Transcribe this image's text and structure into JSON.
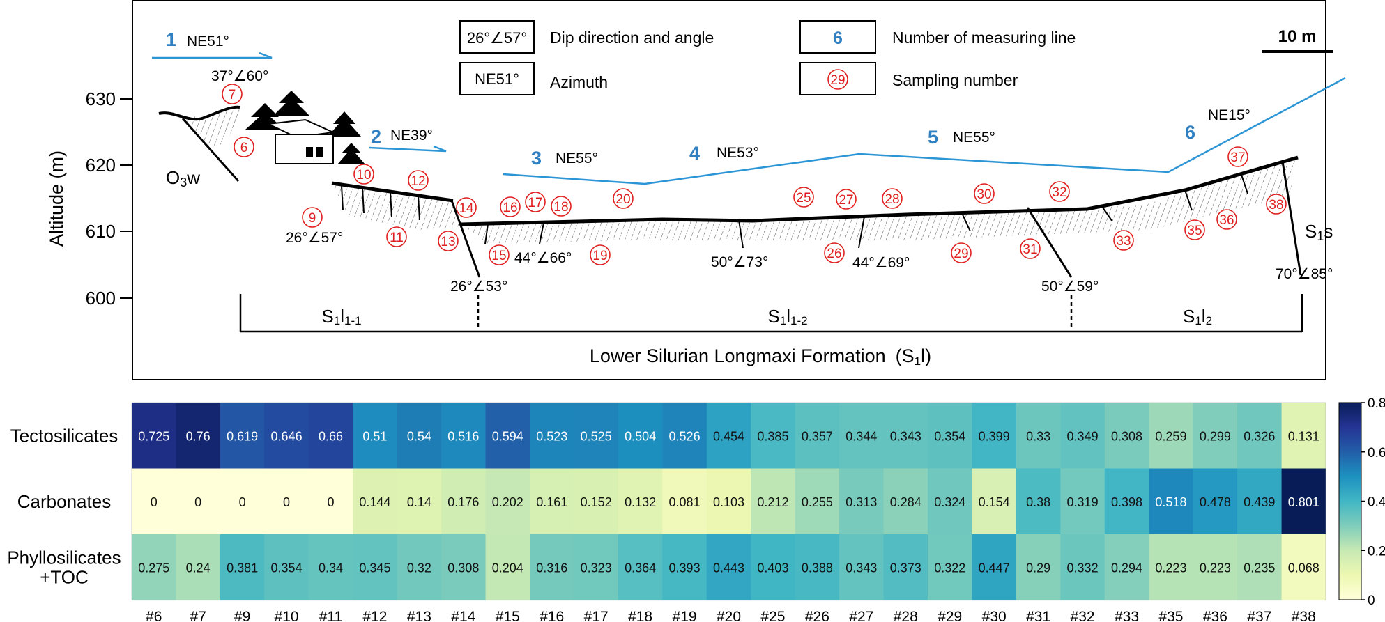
{
  "profile": {
    "y_axis": {
      "label": "Altitude (m)",
      "ticks": [
        "600",
        "610",
        "620",
        "630"
      ]
    },
    "scale_bar": "10 m",
    "legend": {
      "dip_symbol": "26°∠57°",
      "dip_text": "Dip direction and angle",
      "azimuth_symbol": "NE51°",
      "azimuth_text": "Azimuth",
      "line_symbol": "6",
      "line_text": "Number of measuring line",
      "sample_symbol": "29",
      "sample_text": "Sampling number"
    },
    "measuring_lines": [
      {
        "number": "1",
        "azimuth": "NE51°"
      },
      {
        "number": "2",
        "azimuth": "NE39°"
      },
      {
        "number": "3",
        "azimuth": "NE55°"
      },
      {
        "number": "4",
        "azimuth": "NE53°"
      },
      {
        "number": "5",
        "azimuth": "NE55°"
      },
      {
        "number": "6",
        "azimuth": "NE15°"
      }
    ],
    "dip_readings": [
      "37°∠60°",
      "26°∠57°",
      "26°∠53°",
      "44°∠66°",
      "50°∠73°",
      "44°∠69°",
      "50°∠59°",
      "70°∠85°"
    ],
    "samples": [
      "6",
      "7",
      "9",
      "10",
      "11",
      "12",
      "13",
      "14",
      "15",
      "16",
      "17",
      "18",
      "19",
      "20",
      "25",
      "26",
      "27",
      "28",
      "29",
      "30",
      "31",
      "32",
      "33",
      "35",
      "36",
      "37",
      "38"
    ],
    "formations": {
      "o3w_main": "O",
      "o3w_sub": "3",
      "o3w_end": "w",
      "s1s_main": "S",
      "s1s_sub": "1",
      "s1s_end": "s"
    },
    "units": [
      {
        "prefix": "S",
        "sub1": "1",
        "mid": "l",
        "sub2": "1-1"
      },
      {
        "prefix": "S",
        "sub1": "1",
        "mid": "l",
        "sub2": "1-2"
      },
      {
        "prefix": "S",
        "sub1": "1",
        "mid": "l",
        "sub2": "2"
      }
    ],
    "formation_title_a": "Lower Silurian Longmaxi Formation",
    "formation_title_b": "(S",
    "formation_title_sub": "1",
    "formation_title_c": "l)"
  },
  "chart_data": {
    "type": "heatmap",
    "rows": [
      "Tectosilicates",
      "Carbonates",
      "Phyllosilicates +TOC"
    ],
    "row_labels_display": [
      [
        "Tectosilicates"
      ],
      [
        "Carbonates"
      ],
      [
        "Phyllosilicates",
        "+TOC"
      ]
    ],
    "columns": [
      "#6",
      "#7",
      "#9",
      "#10",
      "#11",
      "#12",
      "#13",
      "#14",
      "#15",
      "#16",
      "#17",
      "#18",
      "#19",
      "#20",
      "#25",
      "#26",
      "#27",
      "#28",
      "#29",
      "#30",
      "#31",
      "#32",
      "#33",
      "#35",
      "#36",
      "#37",
      "#38"
    ],
    "values": [
      [
        0.725,
        0.76,
        0.619,
        0.646,
        0.66,
        0.51,
        0.54,
        0.516,
        0.594,
        0.523,
        0.525,
        0.504,
        0.526,
        0.454,
        0.385,
        0.357,
        0.344,
        0.343,
        0.354,
        0.399,
        0.33,
        0.349,
        0.308,
        0.259,
        0.299,
        0.326,
        0.131
      ],
      [
        0,
        0,
        0,
        0,
        0,
        0.144,
        0.14,
        0.176,
        0.202,
        0.161,
        0.152,
        0.132,
        0.081,
        0.103,
        0.212,
        0.255,
        0.313,
        0.284,
        0.324,
        0.154,
        0.38,
        0.319,
        0.398,
        0.518,
        0.478,
        0.439,
        0.801
      ],
      [
        0.275,
        0.24,
        0.381,
        0.354,
        0.34,
        0.345,
        0.32,
        0.308,
        0.204,
        0.316,
        0.323,
        0.364,
        0.393,
        0.443,
        0.403,
        0.388,
        0.343,
        0.373,
        0.322,
        0.447,
        0.29,
        0.332,
        0.294,
        0.223,
        0.223,
        0.235,
        0.068
      ]
    ],
    "colorbar": {
      "min": 0,
      "max": 0.8,
      "ticks": [
        "0",
        "0.2",
        "0.4",
        "0.6",
        "0.8"
      ],
      "colormap": "YlGnBu"
    }
  }
}
